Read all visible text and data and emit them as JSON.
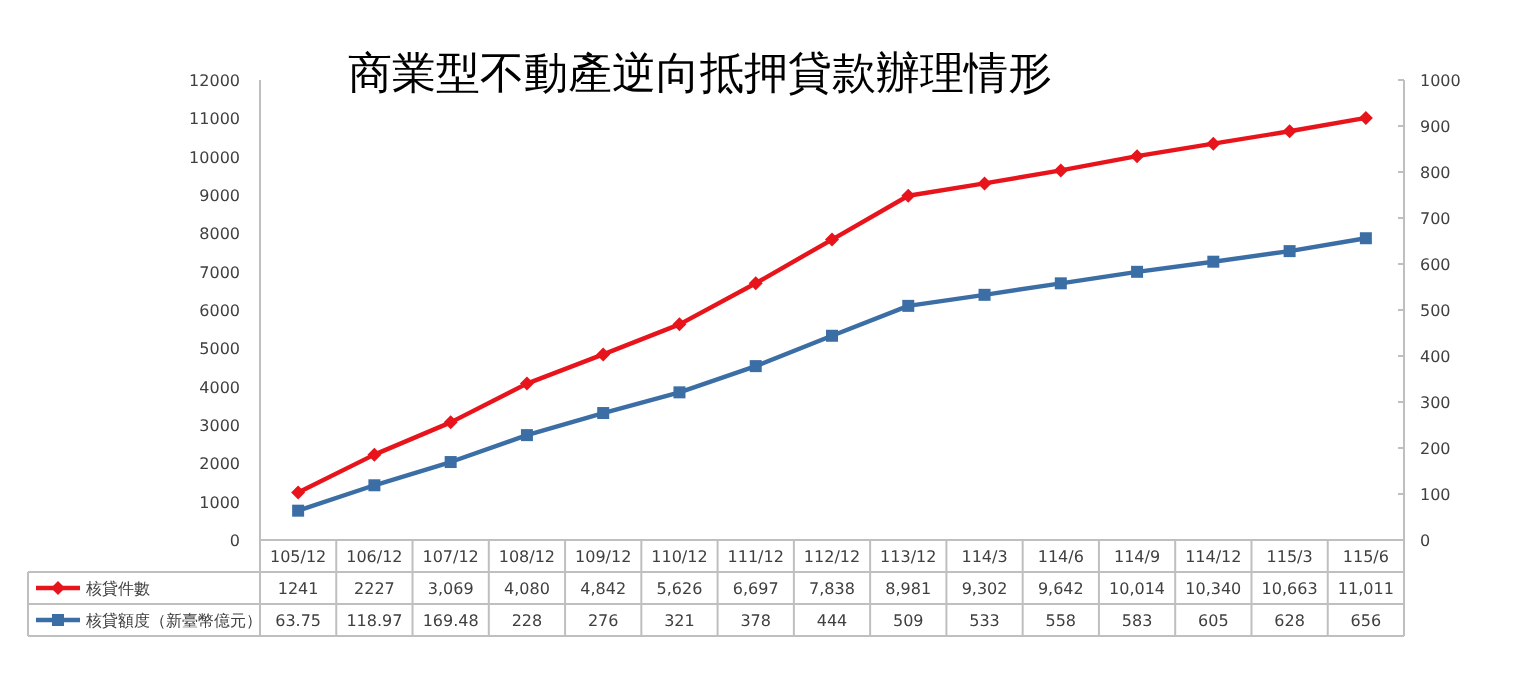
{
  "chart_data": {
    "type": "line",
    "title": "商業型不動產逆向抵押貸款辦理情形",
    "categories": [
      "105/12",
      "106/12",
      "107/12",
      "108/12",
      "109/12",
      "110/12",
      "111/12",
      "112/12",
      "113/12",
      "114/3",
      "114/6",
      "114/9",
      "114/12",
      "115/3",
      "115/6"
    ],
    "series": [
      {
        "name": "核貸件數",
        "color": "#e8141c",
        "marker": "diamond",
        "values": [
          1241,
          2227,
          3069,
          4080,
          4842,
          5626,
          6697,
          7838,
          8981,
          9302,
          9642,
          10014,
          10340,
          10663,
          11011
        ],
        "value_labels": [
          "1241",
          "2227",
          "3,069",
          "4,080",
          "4,842",
          "5,626",
          "6,697",
          "7,838",
          "8,981",
          "9,302",
          "9,642",
          "10,014",
          "10,340",
          "10,663",
          "11,011"
        ]
      },
      {
        "name": "核貸額度（新臺幣億元）",
        "color": "#3c6ea6",
        "marker": "square",
        "axis": "y2",
        "values": [
          63.75,
          118.97,
          169.48,
          228,
          276,
          321,
          378,
          444,
          509,
          533,
          558,
          583,
          605,
          628,
          656
        ],
        "value_labels": [
          "63.75",
          "118.97",
          "169.48",
          "228",
          "276",
          "321",
          "378",
          "444",
          "509",
          "533",
          "558",
          "583",
          "605",
          "628",
          "656"
        ]
      }
    ],
    "ylim": [
      0,
      12000
    ],
    "yticks": [
      0,
      1000,
      2000,
      3000,
      4000,
      5000,
      6000,
      7000,
      8000,
      9000,
      10000,
      11000,
      12000
    ],
    "y2lim": [
      0,
      1000
    ],
    "y2ticks": [
      0,
      100,
      200,
      300,
      400,
      500,
      600,
      700,
      800,
      900,
      1000
    ],
    "grid": false,
    "legend": "bottom",
    "line_style": "solid"
  }
}
